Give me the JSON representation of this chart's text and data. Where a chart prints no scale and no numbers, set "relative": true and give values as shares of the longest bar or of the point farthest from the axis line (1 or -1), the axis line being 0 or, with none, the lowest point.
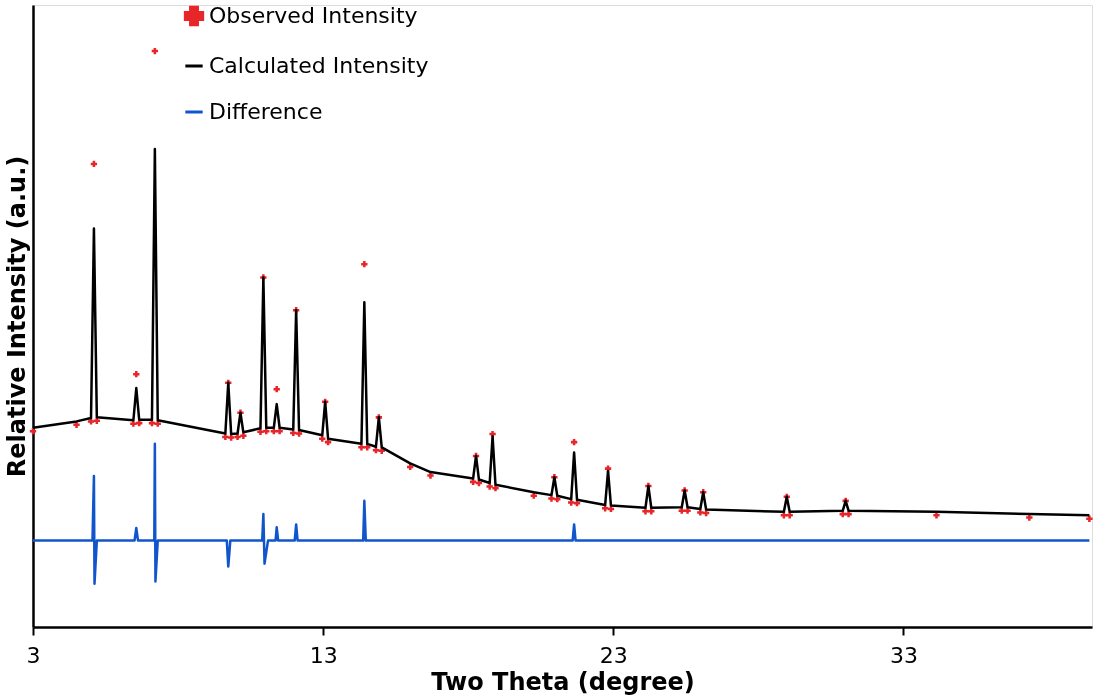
{
  "chart_data": {
    "type": "line",
    "relative": true,
    "xlabel": "Two Theta (degree)",
    "ylabel": "Relative Intensity (a.u.)",
    "xlim": [
      3,
      39.5
    ],
    "xticks": [
      3,
      13,
      23,
      33
    ],
    "grid": false,
    "legend": "top left",
    "series": [
      {
        "name": "Observed Intensity",
        "type": "scatter",
        "marker": "cross",
        "color": "#e8262a",
        "x": [
          3.0,
          4.5,
          5.0,
          5.1,
          5.2,
          6.46,
          6.56,
          6.66,
          7.1,
          7.2,
          7.3,
          9.63,
          9.73,
          9.83,
          10.05,
          10.15,
          10.25,
          10.84,
          10.94,
          11.04,
          11.3,
          11.4,
          11.5,
          11.97,
          12.07,
          12.17,
          12.97,
          13.07,
          13.17,
          14.32,
          14.42,
          14.52,
          14.82,
          14.92,
          15.02,
          16.0,
          16.7,
          18.17,
          18.27,
          18.37,
          18.74,
          18.84,
          18.94,
          20.26,
          20.87,
          20.97,
          21.07,
          21.55,
          21.65,
          21.75,
          22.72,
          22.82,
          22.92,
          24.11,
          24.21,
          24.31,
          25.36,
          25.46,
          25.56,
          26.0,
          26.1,
          26.2,
          28.88,
          28.98,
          29.08,
          30.91,
          31.01,
          31.11,
          34.14,
          37.34,
          39.41
        ],
        "values": [
          0.34,
          0.351,
          0.357,
          0.804,
          0.358,
          0.353,
          0.439,
          0.354,
          0.354,
          1.0,
          0.353,
          0.33,
          0.424,
          0.329,
          0.33,
          0.372,
          0.332,
          0.339,
          0.607,
          0.34,
          0.34,
          0.413,
          0.34,
          0.337,
          0.55,
          0.336,
          0.327,
          0.391,
          0.321,
          0.312,
          0.63,
          0.312,
          0.307,
          0.364,
          0.306,
          0.278,
          0.263,
          0.252,
          0.297,
          0.25,
          0.244,
          0.335,
          0.241,
          0.228,
          0.223,
          0.26,
          0.222,
          0.216,
          0.321,
          0.215,
          0.206,
          0.275,
          0.205,
          0.201,
          0.245,
          0.201,
          0.202,
          0.237,
          0.202,
          0.199,
          0.234,
          0.198,
          0.194,
          0.226,
          0.194,
          0.196,
          0.219,
          0.196,
          0.194,
          0.19,
          0.188
        ]
      },
      {
        "name": "Calculated Intensity",
        "color": "#000000",
        "x": [
          3.0,
          4.5,
          5.0,
          5.1,
          5.2,
          6.46,
          6.56,
          6.66,
          7.1,
          7.2,
          7.3,
          9.63,
          9.73,
          9.83,
          10.05,
          10.15,
          10.25,
          10.84,
          10.94,
          11.04,
          11.3,
          11.4,
          11.5,
          11.97,
          12.07,
          12.17,
          12.97,
          13.07,
          13.17,
          14.32,
          14.42,
          14.52,
          14.82,
          14.92,
          15.02,
          16.0,
          16.7,
          18.17,
          18.27,
          18.37,
          18.74,
          18.84,
          18.94,
          20.26,
          20.87,
          20.97,
          21.07,
          21.55,
          21.65,
          21.75,
          22.72,
          22.82,
          22.92,
          24.11,
          24.21,
          24.31,
          25.36,
          25.46,
          25.56,
          26.0,
          26.1,
          26.2,
          28.88,
          28.98,
          29.08,
          30.91,
          31.01,
          31.11,
          34.14,
          37.34,
          39.41
        ],
        "values": [
          0.346,
          0.357,
          0.363,
          0.692,
          0.364,
          0.359,
          0.415,
          0.36,
          0.36,
          0.83,
          0.359,
          0.336,
          0.424,
          0.335,
          0.336,
          0.372,
          0.338,
          0.345,
          0.607,
          0.346,
          0.346,
          0.387,
          0.346,
          0.343,
          0.55,
          0.342,
          0.333,
          0.391,
          0.327,
          0.318,
          0.564,
          0.318,
          0.313,
          0.364,
          0.312,
          0.284,
          0.269,
          0.258,
          0.297,
          0.256,
          0.25,
          0.331,
          0.247,
          0.234,
          0.229,
          0.26,
          0.228,
          0.222,
          0.303,
          0.221,
          0.212,
          0.271,
          0.211,
          0.207,
          0.245,
          0.207,
          0.208,
          0.237,
          0.208,
          0.205,
          0.234,
          0.204,
          0.2,
          0.226,
          0.2,
          0.202,
          0.219,
          0.202,
          0.2,
          0.196,
          0.194
        ]
      },
      {
        "name": "Difference",
        "color": "#1155cc",
        "x": [
          3.0,
          5.05,
          5.1,
          5.12,
          5.2,
          6.5,
          6.56,
          6.62,
          7.18,
          7.2,
          7.22,
          7.3,
          9.68,
          9.73,
          9.8,
          10.9,
          10.94,
          10.98,
          11.1,
          11.36,
          11.4,
          11.45,
          12.02,
          12.07,
          12.12,
          14.38,
          14.42,
          14.47,
          21.6,
          21.65,
          21.7,
          39.41
        ],
        "values": [
          0.15,
          0.15,
          0.262,
          0.075,
          0.15,
          0.15,
          0.172,
          0.15,
          0.15,
          0.318,
          0.079,
          0.15,
          0.15,
          0.105,
          0.15,
          0.15,
          0.196,
          0.11,
          0.15,
          0.15,
          0.173,
          0.15,
          0.15,
          0.178,
          0.15,
          0.15,
          0.219,
          0.15,
          0.15,
          0.178,
          0.15,
          0.15
        ]
      }
    ]
  }
}
